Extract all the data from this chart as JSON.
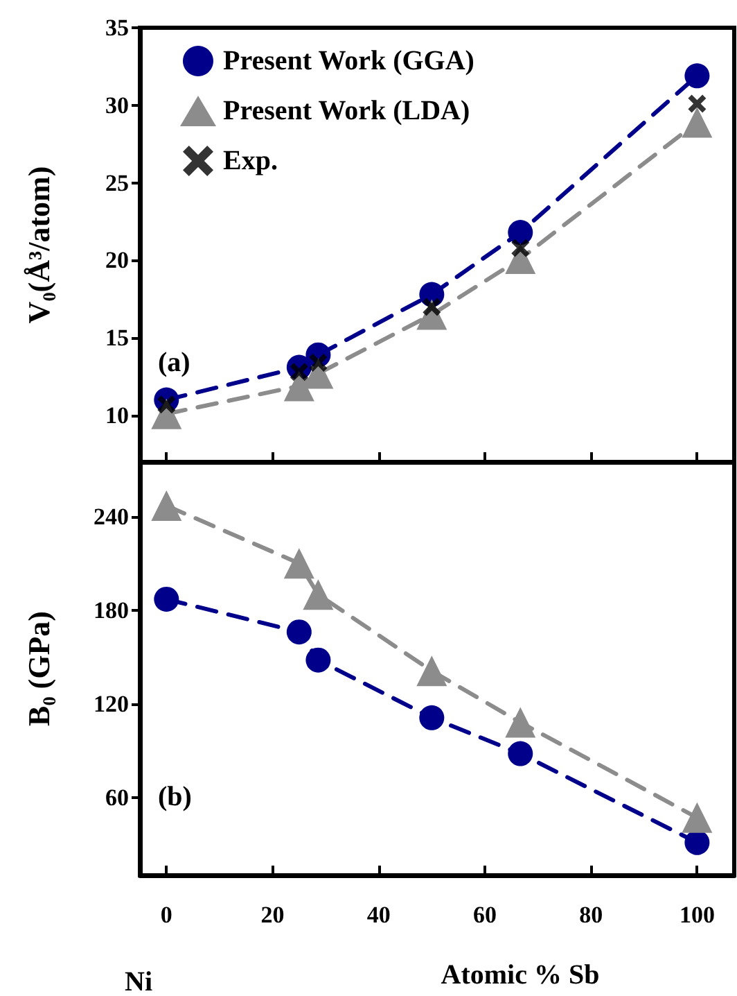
{
  "chart_data": [
    {
      "type": "line",
      "ylabel": "V₀(Å³/atom)",
      "annotations": [
        "(a)"
      ],
      "xlim": [
        -5,
        107
      ],
      "xticks": [
        0,
        20,
        40,
        60,
        80,
        100
      ],
      "ylim": [
        7,
        35
      ],
      "yticks": [
        10,
        15,
        20,
        25,
        30,
        35
      ],
      "tick_labels": "y",
      "legend": "top left",
      "grid": false,
      "series": [
        {
          "name": "Present Work (GGA)",
          "color": "#00008b",
          "marker": "circle",
          "line_style": "dashed",
          "x": [
            0,
            25,
            28.6,
            50,
            66.7,
            100
          ],
          "values": [
            11.0,
            13.1,
            13.9,
            17.8,
            21.8,
            31.9
          ]
        },
        {
          "name": "Present Work (LDA)",
          "color": "#8c8c8c",
          "marker": "triangle",
          "line_style": "dashed",
          "x": [
            0,
            25,
            28.6,
            50,
            66.7,
            100
          ],
          "values": [
            10.1,
            11.9,
            12.7,
            16.5,
            20.1,
            28.9
          ]
        },
        {
          "name": "Exp.",
          "type": "scatter",
          "color": "#000000",
          "marker": "cross",
          "x": [
            0,
            25,
            28.6,
            50,
            66.7,
            100
          ],
          "values": [
            10.7,
            12.8,
            13.4,
            17.0,
            20.8,
            30.1
          ]
        }
      ]
    },
    {
      "type": "line",
      "ylabel": "B₀ (GPa)",
      "xlabel": "Atomic % Sb",
      "annotations": [
        "(b)",
        "Ni"
      ],
      "xlim": [
        -5,
        107
      ],
      "xticks": [
        0,
        20,
        40,
        60,
        80,
        100
      ],
      "ylim": [
        10,
        275
      ],
      "yticks": [
        60,
        120,
        180,
        240
      ],
      "legend": false,
      "grid": false,
      "series": [
        {
          "color": "#00008b",
          "marker": "circle",
          "line_style": "dashed",
          "x": [
            0,
            25,
            28.6,
            50,
            66.7,
            100
          ],
          "values": [
            187,
            166,
            148,
            111,
            88,
            31
          ]
        },
        {
          "color": "#8c8c8c",
          "marker": "triangle",
          "line_style": "dashed",
          "x": [
            0,
            25,
            28.6,
            50,
            66.7,
            100
          ],
          "values": [
            247,
            210,
            190,
            141,
            108,
            47
          ]
        }
      ]
    }
  ]
}
